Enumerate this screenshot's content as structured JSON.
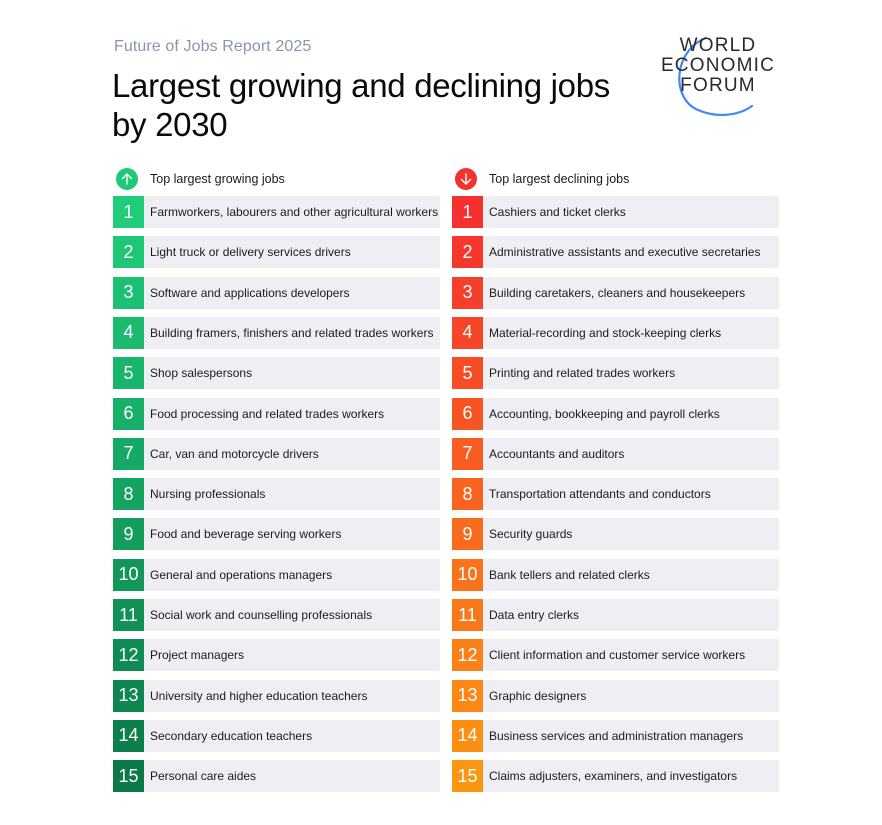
{
  "header": {
    "kicker": "Future of Jobs Report 2025",
    "title": "Largest growing and declining jobs by 2030"
  },
  "logo": {
    "lines": [
      "WORLD",
      "ECONOMIC",
      "FORUM"
    ],
    "arc_color": "#3d8af7"
  },
  "growing": {
    "heading": "Top largest growing jobs",
    "icon": "arrow-up-icon",
    "icon_color": "#1ec97a",
    "color_start": "#1fcc7a",
    "color_end": "#0b7a48",
    "items": [
      {
        "rank": "1",
        "label": "Farmworkers, labourers and other agricultural workers"
      },
      {
        "rank": "2",
        "label": "Light truck or delivery services drivers"
      },
      {
        "rank": "3",
        "label": "Software and applications developers"
      },
      {
        "rank": "4",
        "label": "Building framers, finishers and related trades workers"
      },
      {
        "rank": "5",
        "label": "Shop salespersons"
      },
      {
        "rank": "6",
        "label": "Food processing and related trades workers"
      },
      {
        "rank": "7",
        "label": "Car, van and motorcycle drivers"
      },
      {
        "rank": "8",
        "label": "Nursing professionals"
      },
      {
        "rank": "9",
        "label": "Food and beverage serving workers"
      },
      {
        "rank": "10",
        "label": "General and operations managers"
      },
      {
        "rank": "11",
        "label": "Social work and counselling professionals"
      },
      {
        "rank": "12",
        "label": "Project managers"
      },
      {
        "rank": "13",
        "label": "University and higher education teachers"
      },
      {
        "rank": "14",
        "label": "Secondary education teachers"
      },
      {
        "rank": "15",
        "label": "Personal care aides"
      }
    ]
  },
  "declining": {
    "heading": "Top largest declining jobs",
    "icon": "arrow-down-icon",
    "icon_color": "#f2322e",
    "color_start": "#f5302e",
    "color_end": "#fb9612",
    "items": [
      {
        "rank": "1",
        "label": "Cashiers and ticket clerks"
      },
      {
        "rank": "2",
        "label": "Administrative assistants and executive secretaries"
      },
      {
        "rank": "3",
        "label": "Building caretakers, cleaners and housekeepers"
      },
      {
        "rank": "4",
        "label": "Material-recording and stock-keeping clerks"
      },
      {
        "rank": "5",
        "label": "Printing and related trades workers"
      },
      {
        "rank": "6",
        "label": "Accounting, bookkeeping and payroll clerks"
      },
      {
        "rank": "7",
        "label": "Accountants and auditors"
      },
      {
        "rank": "8",
        "label": "Transportation attendants and conductors"
      },
      {
        "rank": "9",
        "label": "Security guards"
      },
      {
        "rank": "10",
        "label": "Bank tellers and related clerks"
      },
      {
        "rank": "11",
        "label": "Data entry clerks"
      },
      {
        "rank": "12",
        "label": "Client information and customer service workers"
      },
      {
        "rank": "13",
        "label": "Graphic designers"
      },
      {
        "rank": "14",
        "label": "Business services and administration managers"
      },
      {
        "rank": "15",
        "label": "Claims adjusters, examiners, and investigators"
      }
    ]
  }
}
